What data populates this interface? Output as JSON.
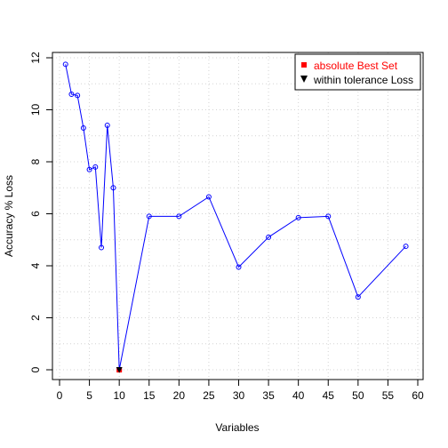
{
  "chart_data": {
    "type": "line",
    "xlabel": "Variables",
    "ylabel": "Accuracy % Loss",
    "xlim": [
      0,
      60
    ],
    "ylim": [
      0,
      12
    ],
    "x_ticks": [
      0,
      5,
      10,
      15,
      20,
      25,
      30,
      35,
      40,
      45,
      50,
      55,
      60
    ],
    "y_ticks": [
      0,
      2,
      4,
      6,
      8,
      10,
      12
    ],
    "grid": true,
    "legend_position": "top-right",
    "series": [
      {
        "x": [
          1,
          2,
          3,
          4,
          5,
          6,
          7,
          8,
          9,
          10,
          15,
          20,
          25,
          30,
          35,
          40,
          45,
          50,
          58
        ],
        "y": [
          11.75,
          10.6,
          10.55,
          9.3,
          7.7,
          7.8,
          4.7,
          9.4,
          7.0,
          0.0,
          5.9,
          5.9,
          6.65,
          3.95,
          5.1,
          5.85,
          5.9,
          2.8,
          4.75
        ],
        "color": "#0000ff"
      }
    ],
    "markers": [
      {
        "name": "absolute Best Set",
        "x": 10,
        "y": 0.0,
        "shape": "square",
        "color": "#ff0000",
        "text_color": "#ff0000"
      },
      {
        "name": "within tolerance Loss",
        "x": 10,
        "y": 0.0,
        "shape": "triangle-down",
        "color": "#000000",
        "text_color": "#000000"
      }
    ]
  }
}
